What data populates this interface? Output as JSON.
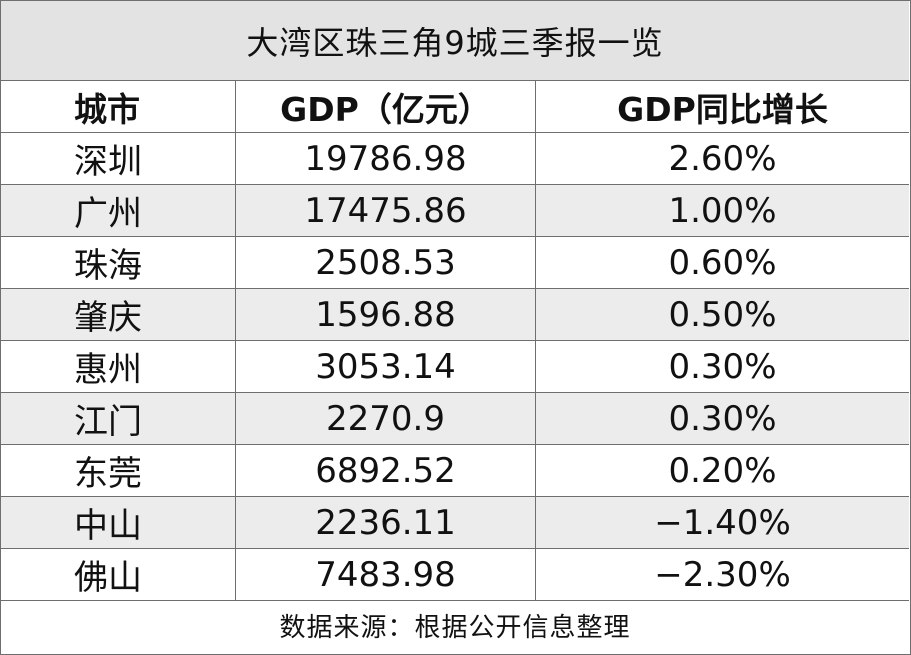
{
  "title": "大湾区珠三角9城三季报一览",
  "headers": [
    "城市",
    "GDP（亿元）",
    "GDP同比增长"
  ],
  "footer": "数据来源：根据公开信息整理",
  "chart_data": {
    "type": "table",
    "title": "大湾区珠三角9城三季报一览",
    "columns": [
      "城市",
      "GDP（亿元）",
      "GDP同比增长"
    ],
    "rows": [
      [
        "深圳",
        "19786.98",
        "2.60%"
      ],
      [
        "广州",
        "17475.86",
        "1.00%"
      ],
      [
        "珠海",
        "2508.53",
        "0.60%"
      ],
      [
        "肇庆",
        "1596.88",
        "0.50%"
      ],
      [
        "惠州",
        "3053.14",
        "0.30%"
      ],
      [
        "江门",
        "2270.9",
        "0.30%"
      ],
      [
        "东莞",
        "6892.52",
        "0.20%"
      ],
      [
        "中山",
        "2236.11",
        "−1.40%"
      ],
      [
        "佛山",
        "7483.98",
        "−2.30%"
      ]
    ]
  }
}
